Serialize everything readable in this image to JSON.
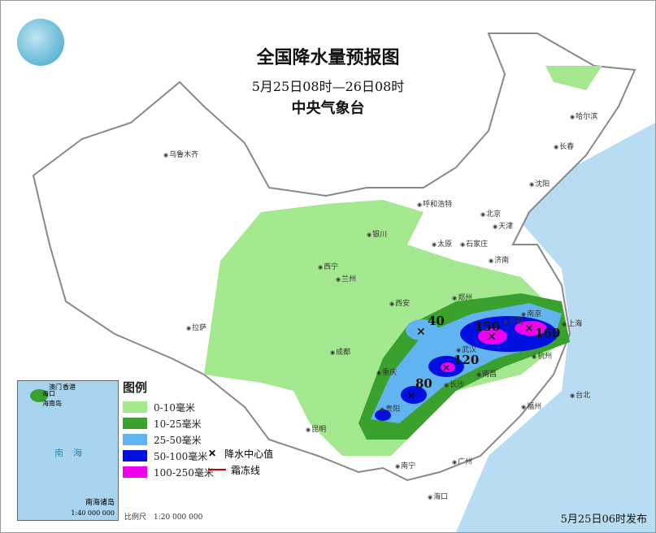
{
  "header": {
    "title": "全国降水量预报图",
    "period": "5月25日08时—26日08时",
    "issuer": "中央气象台"
  },
  "issue_time": "5月25日06时发布",
  "scale": "比例尺　1:20 000 000",
  "legend": {
    "title": "图例",
    "items": [
      {
        "label": "0-10毫米",
        "color": "#a4e890"
      },
      {
        "label": "10-25毫米",
        "color": "#3aa02e"
      },
      {
        "label": "25-50毫米",
        "color": "#62b4f0"
      },
      {
        "label": "50-100毫米",
        "color": "#0010e0"
      },
      {
        "label": "100-250毫米",
        "color": "#f000f0"
      }
    ],
    "center_label": "降水中心值",
    "frost_label": "霜冻线"
  },
  "inset": {
    "sea": "南海",
    "islands": "南海诸岛",
    "scale": "1:40 000 000",
    "haikou": "海口",
    "hainan": "海南岛",
    "hk": "香港",
    "macau": "澳门"
  },
  "centers": [
    {
      "value": "40"
    },
    {
      "value": "150"
    },
    {
      "value": "160"
    },
    {
      "value": "120"
    },
    {
      "value": "80"
    }
  ],
  "cities": [
    "乌鲁木齐",
    "哈尔滨",
    "长春",
    "沈阳",
    "呼和浩特",
    "北京",
    "天津",
    "太原",
    "石家庄",
    "济南",
    "银川",
    "西宁",
    "兰州",
    "西安",
    "郑州",
    "合肥",
    "南京",
    "上海",
    "武汉",
    "杭州",
    "长沙",
    "南昌",
    "重庆",
    "成都",
    "贵阳",
    "昆明",
    "拉萨",
    "福州",
    "台北",
    "广州",
    "南宁",
    "海口"
  ]
}
